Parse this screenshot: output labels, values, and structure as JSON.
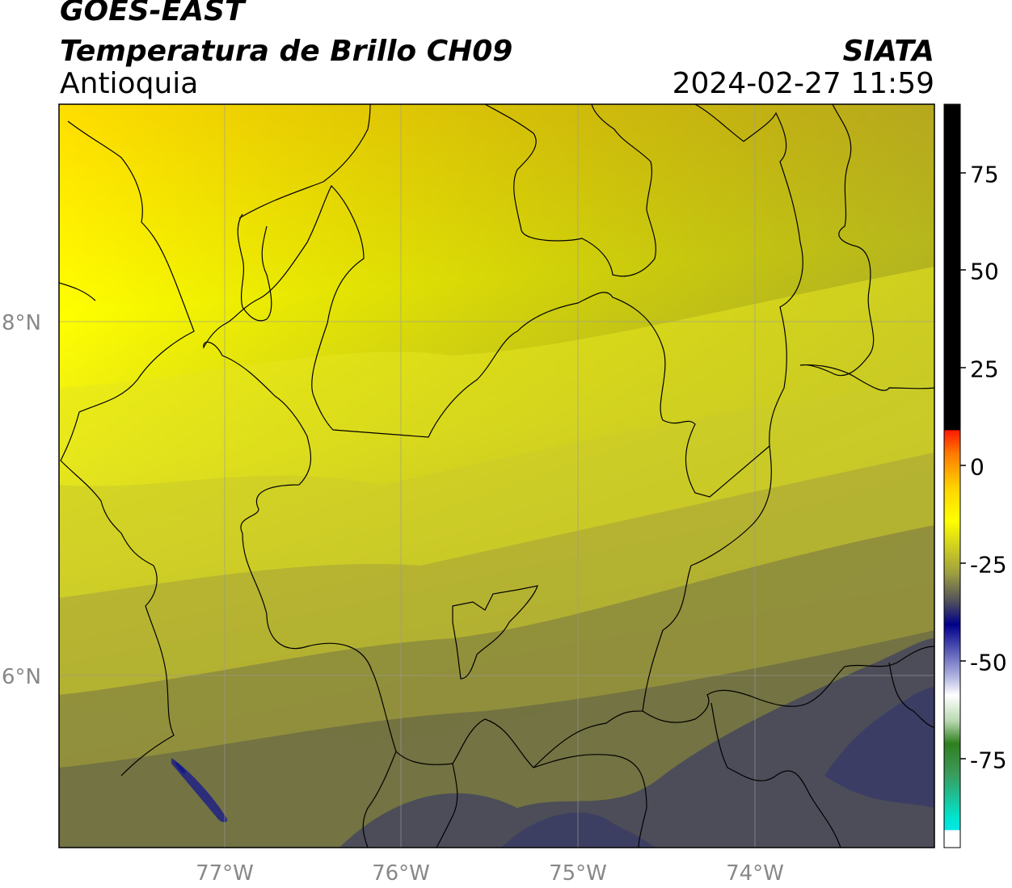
{
  "header": {
    "satellite": "GOES-EAST",
    "product": "Temperatura de Brillo CH09",
    "region": "Antioquia",
    "organization": "SIATA",
    "datetime": "2024-02-27 11:59"
  },
  "axes": {
    "lat_labels": [
      "8°N",
      "6°N"
    ],
    "lon_labels": [
      "77°W",
      "76°W",
      "75°W",
      "74°W"
    ]
  },
  "colorbar": {
    "ticks": [
      "75",
      "50",
      "25",
      "0",
      "-25",
      "-50",
      "-75"
    ],
    "min": -93,
    "max": 93,
    "colors": {
      "black_top": "#000000",
      "red": "#ff0000",
      "orange": "#ff8800",
      "yellow": "#ffff00",
      "olive": "#8a8a3a",
      "navy": "#000080",
      "white": "#ffffff",
      "green": "#2f7f1f",
      "cyan": "#00e5e5"
    }
  },
  "colors": {
    "map_north": "#ffe100",
    "map_mid": "#d8d41a",
    "map_south": "#5c5c4a",
    "cold_band": "#3c3e64",
    "border_line": "#000000",
    "grid_line": "#9a9a9a"
  }
}
